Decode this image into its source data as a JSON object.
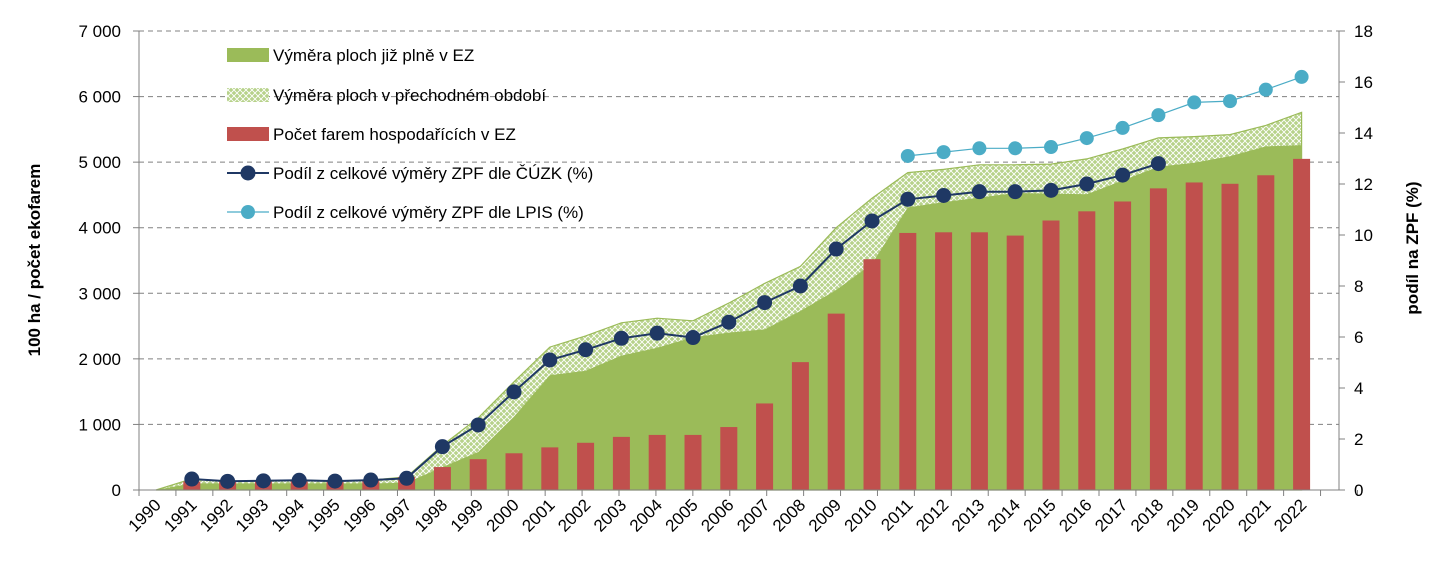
{
  "chart_data": {
    "type": "bar",
    "categories": [
      "1990",
      "1991",
      "1992",
      "1993",
      "1994",
      "1995",
      "1996",
      "1997",
      "1998",
      "1999",
      "2000",
      "2001",
      "2002",
      "2003",
      "2004",
      "2005",
      "2006",
      "2007",
      "2008",
      "2009",
      "2010",
      "2011",
      "2012",
      "2013",
      "2014",
      "2015",
      "2016",
      "2017",
      "2018",
      "2019",
      "2020",
      "2021",
      "2022"
    ],
    "ylabel": "100 ha / počet ekofarem",
    "y2label": "podíl na ZPF (%)",
    "ylim": [
      0,
      7000
    ],
    "y2lim": [
      0,
      18
    ],
    "yticks": [
      "0",
      "1 000",
      "2 000",
      "3 000",
      "4 000",
      "5 000",
      "6 000",
      "7 000"
    ],
    "y2ticks": [
      "0",
      "2",
      "4",
      "6",
      "8",
      "10",
      "12",
      "14",
      "16",
      "18"
    ],
    "grid": true,
    "legend_position": "top-left",
    "colors": {
      "area_full": "#9bbb59",
      "area_transition": "#b7d28a",
      "bars": "#c0504d",
      "line_cuzk": "#1f3864",
      "line_lpis": "#4bacc6",
      "grid": "#808080"
    },
    "series": [
      {
        "name": "Výměra ploch již plně v EZ",
        "kind": "area",
        "axis": "left",
        "values": [
          0,
          100,
          100,
          100,
          100,
          100,
          100,
          110,
          350,
          580,
          1120,
          1750,
          1820,
          2050,
          2170,
          2330,
          2400,
          2450,
          2730,
          3050,
          3450,
          4310,
          4390,
          4460,
          4530,
          4520,
          4510,
          4720,
          4930,
          4990,
          5090,
          5240,
          5260
        ]
      },
      {
        "name": "Výměra ploch v přechodném období",
        "kind": "area_top",
        "axis": "left",
        "values": [
          0,
          170,
          130,
          140,
          150,
          140,
          150,
          200,
          680,
          1100,
          1650,
          2180,
          2350,
          2550,
          2620,
          2580,
          2850,
          3150,
          3410,
          4000,
          4450,
          4840,
          4890,
          4960,
          4960,
          4970,
          5050,
          5200,
          5370,
          5390,
          5420,
          5560,
          5760
        ]
      },
      {
        "name": "Počet farem hospodařících v EZ",
        "kind": "bar",
        "axis": "left",
        "values": [
          null,
          130,
          140,
          140,
          150,
          140,
          150,
          200,
          350,
          470,
          560,
          650,
          720,
          810,
          840,
          840,
          960,
          1320,
          1950,
          2690,
          3520,
          3920,
          3930,
          3930,
          3880,
          4110,
          4250,
          4400,
          4600,
          4690,
          4670,
          4800,
          5050
        ]
      },
      {
        "name": "Podíl z celkové výměry ZPF dle ČÚZK (%)",
        "kind": "line",
        "axis": "right",
        "values": [
          null,
          0.43,
          0.34,
          0.36,
          0.38,
          0.35,
          0.39,
          0.46,
          1.7,
          2.55,
          3.85,
          5.1,
          5.5,
          5.95,
          6.15,
          5.98,
          6.58,
          7.35,
          8.0,
          9.45,
          10.55,
          11.4,
          11.55,
          11.7,
          11.7,
          11.75,
          12.0,
          12.35,
          12.8,
          null,
          null,
          null,
          null
        ]
      },
      {
        "name": "Podíl z celkové výměry ZPF dle LPIS (%)",
        "kind": "line",
        "axis": "right",
        "values": [
          null,
          null,
          null,
          null,
          null,
          null,
          null,
          null,
          null,
          null,
          null,
          null,
          null,
          null,
          null,
          null,
          null,
          null,
          null,
          null,
          null,
          13.1,
          13.25,
          13.4,
          13.4,
          13.45,
          13.8,
          14.2,
          14.7,
          15.2,
          15.25,
          15.7,
          16.2
        ]
      }
    ]
  }
}
